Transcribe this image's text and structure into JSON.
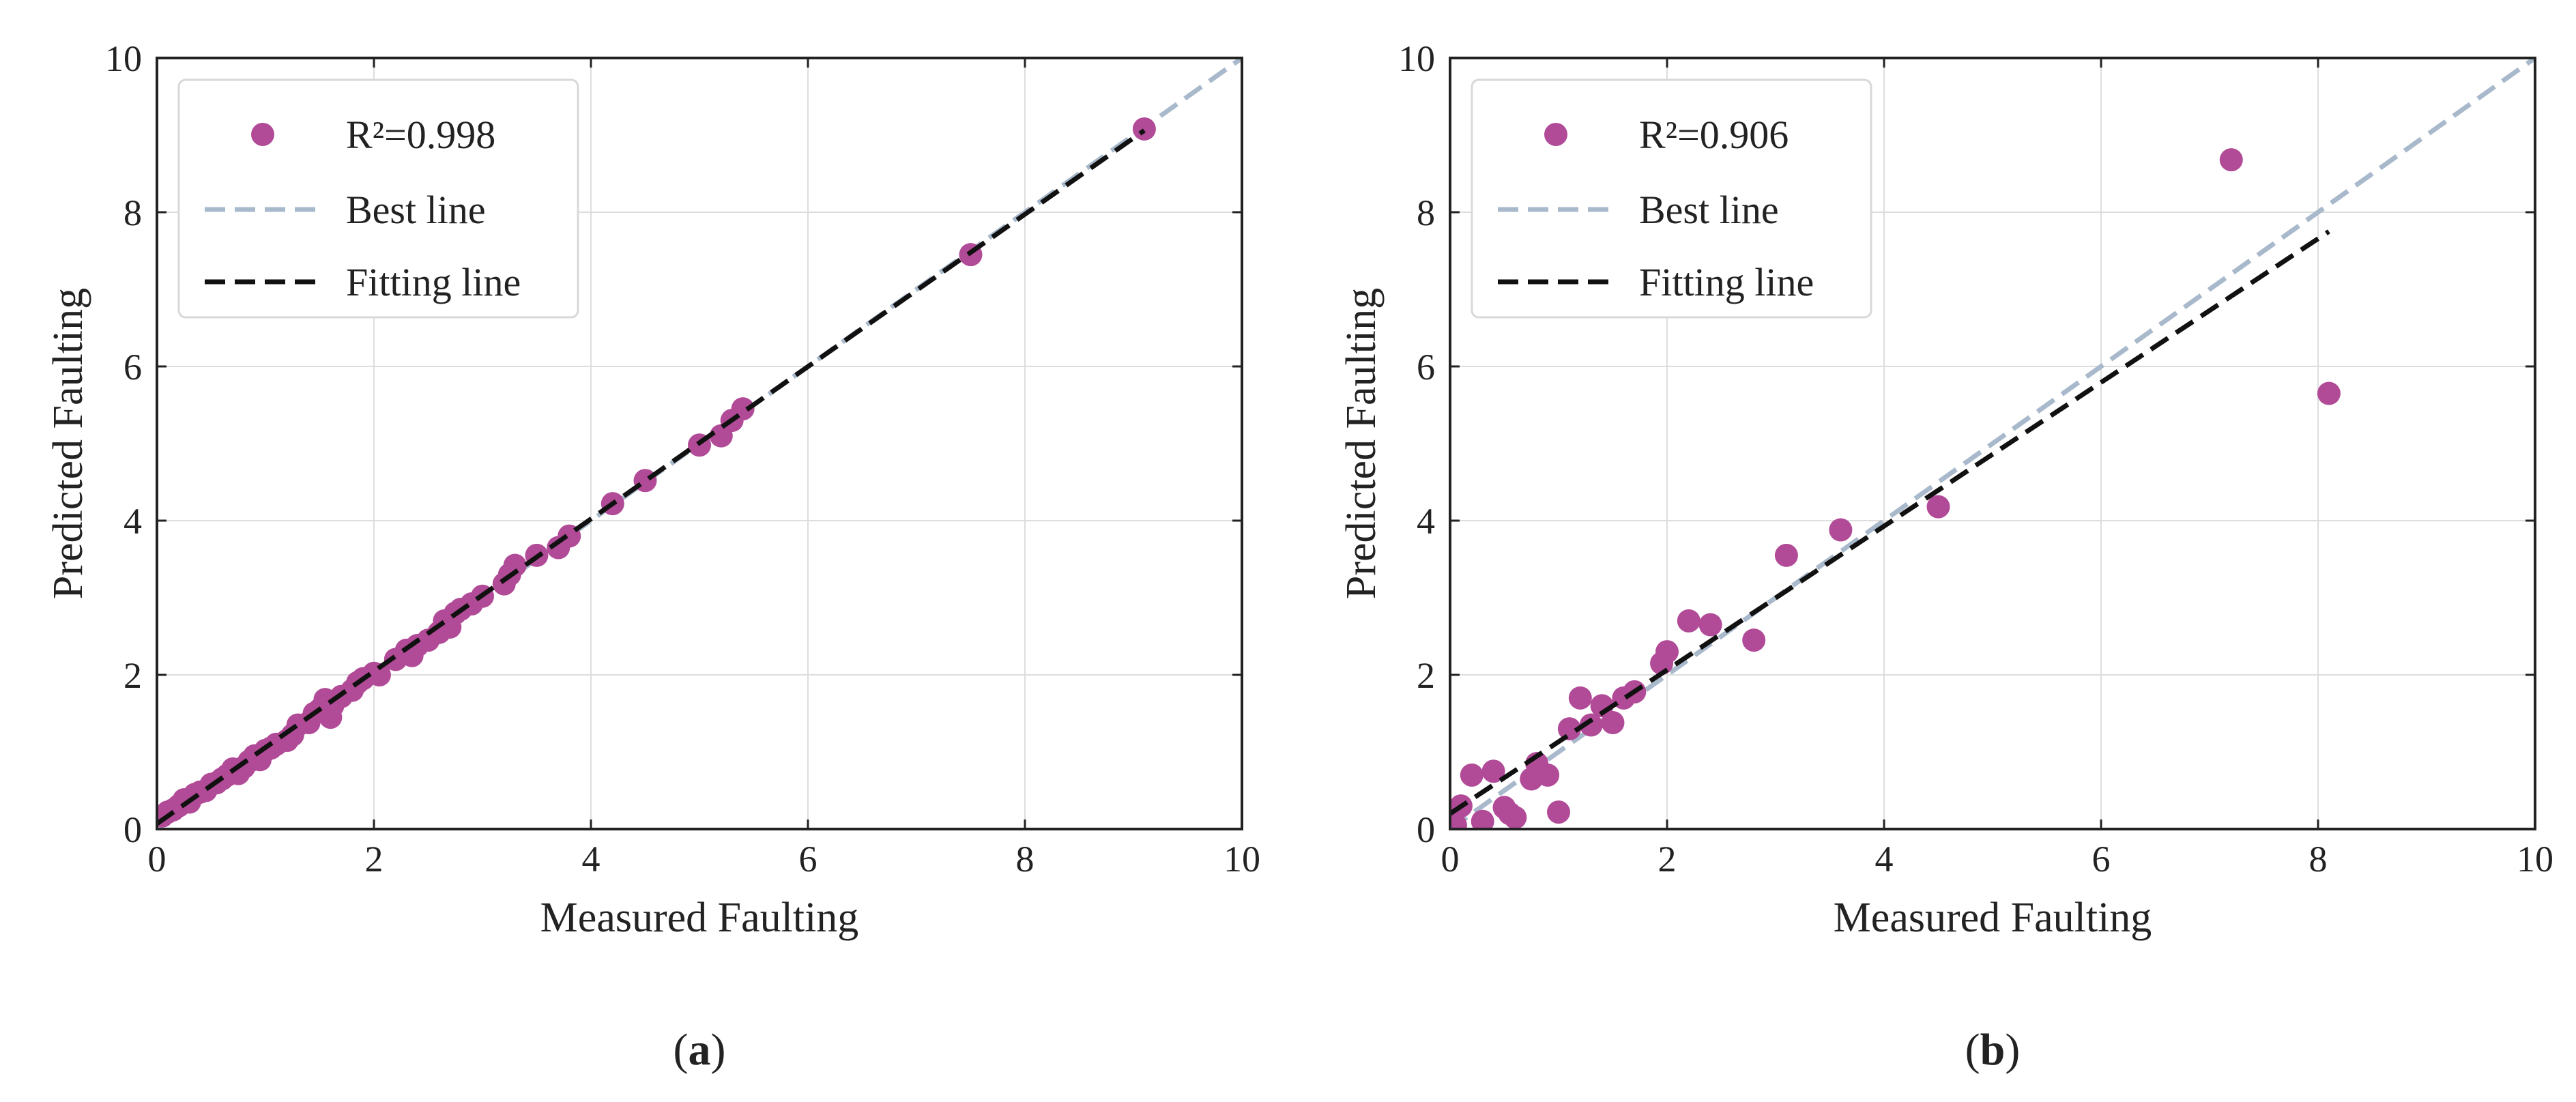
{
  "figure": {
    "colors": {
      "marker": "#b14a97",
      "best_line": "#a9b9cc",
      "fitting_line": "#111111",
      "grid": "#dddddd",
      "axis": "#222222"
    }
  },
  "chart_data": [
    {
      "type": "scatter",
      "caption": {
        "open": "(",
        "letter": "a",
        "close": ")"
      },
      "xlabel": "Measured Faulting",
      "ylabel": "Predicted Faulting",
      "xlim": [
        0,
        10
      ],
      "ylim": [
        0,
        10
      ],
      "xticks": [
        "0",
        "2",
        "4",
        "6",
        "8",
        "10"
      ],
      "yticks": [
        "0",
        "2",
        "4",
        "6",
        "8",
        "10"
      ],
      "grid": true,
      "legend": {
        "position": "top-left",
        "entries": [
          "R²=0.998",
          "Best line",
          "Fitting line"
        ]
      },
      "best_line": {
        "x": [
          0,
          10
        ],
        "y": [
          0,
          10
        ]
      },
      "fitting_line": {
        "x": [
          0,
          9.1
        ],
        "y": [
          0.07,
          9.06
        ]
      },
      "points": [
        [
          0.05,
          0.17
        ],
        [
          0.1,
          0.22
        ],
        [
          0.15,
          0.25
        ],
        [
          0.2,
          0.3
        ],
        [
          0.25,
          0.38
        ],
        [
          0.3,
          0.35
        ],
        [
          0.35,
          0.45
        ],
        [
          0.4,
          0.48
        ],
        [
          0.45,
          0.5
        ],
        [
          0.5,
          0.58
        ],
        [
          0.55,
          0.6
        ],
        [
          0.6,
          0.65
        ],
        [
          0.65,
          0.7
        ],
        [
          0.7,
          0.78
        ],
        [
          0.75,
          0.72
        ],
        [
          0.8,
          0.8
        ],
        [
          0.85,
          0.88
        ],
        [
          0.9,
          0.95
        ],
        [
          0.95,
          0.9
        ],
        [
          1.0,
          1.02
        ],
        [
          1.05,
          1.05
        ],
        [
          1.1,
          1.1
        ],
        [
          1.2,
          1.15
        ],
        [
          1.25,
          1.22
        ],
        [
          1.3,
          1.35
        ],
        [
          1.4,
          1.38
        ],
        [
          1.45,
          1.5
        ],
        [
          1.5,
          1.55
        ],
        [
          1.55,
          1.68
        ],
        [
          1.6,
          1.45
        ],
        [
          1.62,
          1.6
        ],
        [
          1.7,
          1.72
        ],
        [
          1.8,
          1.8
        ],
        [
          1.85,
          1.9
        ],
        [
          1.9,
          1.95
        ],
        [
          2.0,
          2.02
        ],
        [
          2.05,
          2.0
        ],
        [
          2.2,
          2.2
        ],
        [
          2.3,
          2.32
        ],
        [
          2.35,
          2.25
        ],
        [
          2.4,
          2.38
        ],
        [
          2.5,
          2.45
        ],
        [
          2.6,
          2.55
        ],
        [
          2.65,
          2.7
        ],
        [
          2.7,
          2.62
        ],
        [
          2.75,
          2.8
        ],
        [
          2.8,
          2.85
        ],
        [
          2.9,
          2.92
        ],
        [
          3.0,
          3.02
        ],
        [
          3.2,
          3.18
        ],
        [
          3.25,
          3.3
        ],
        [
          3.3,
          3.42
        ],
        [
          3.5,
          3.55
        ],
        [
          3.7,
          3.65
        ],
        [
          3.8,
          3.8
        ],
        [
          4.2,
          4.22
        ],
        [
          4.5,
          4.52
        ],
        [
          5.0,
          4.98
        ],
        [
          5.2,
          5.1
        ],
        [
          5.3,
          5.3
        ],
        [
          5.4,
          5.45
        ],
        [
          7.5,
          7.45
        ],
        [
          9.1,
          9.08
        ]
      ]
    },
    {
      "type": "scatter",
      "caption": {
        "open": "(",
        "letter": "b",
        "close": ")"
      },
      "xlabel": "Measured Faulting",
      "ylabel": "Predicted Faulting",
      "xlim": [
        0,
        10
      ],
      "ylim": [
        0,
        10
      ],
      "xticks": [
        "0",
        "2",
        "4",
        "6",
        "8",
        "10"
      ],
      "yticks": [
        "0",
        "2",
        "4",
        "6",
        "8",
        "10"
      ],
      "grid": true,
      "legend": {
        "position": "top-left",
        "entries": [
          "R²=0.906",
          "Best line",
          "Fitting line"
        ]
      },
      "best_line": {
        "x": [
          0,
          10
        ],
        "y": [
          0,
          10
        ]
      },
      "fitting_line": {
        "x": [
          0,
          8.1
        ],
        "y": [
          0.2,
          7.75
        ]
      },
      "points": [
        [
          0.05,
          0.05
        ],
        [
          0.1,
          0.3
        ],
        [
          0.2,
          0.7
        ],
        [
          0.3,
          0.1
        ],
        [
          0.4,
          0.75
        ],
        [
          0.5,
          0.28
        ],
        [
          0.55,
          0.2
        ],
        [
          0.6,
          0.15
        ],
        [
          0.75,
          0.65
        ],
        [
          0.8,
          0.85
        ],
        [
          0.9,
          0.7
        ],
        [
          1.0,
          0.22
        ],
        [
          1.1,
          1.3
        ],
        [
          1.2,
          1.7
        ],
        [
          1.3,
          1.35
        ],
        [
          1.4,
          1.6
        ],
        [
          1.5,
          1.38
        ],
        [
          1.6,
          1.7
        ],
        [
          1.7,
          1.78
        ],
        [
          1.95,
          2.15
        ],
        [
          2.0,
          2.3
        ],
        [
          2.2,
          2.7
        ],
        [
          2.4,
          2.65
        ],
        [
          2.8,
          2.45
        ],
        [
          3.1,
          3.55
        ],
        [
          3.6,
          3.88
        ],
        [
          4.5,
          4.18
        ],
        [
          7.2,
          8.68
        ],
        [
          8.1,
          5.65
        ]
      ]
    }
  ]
}
